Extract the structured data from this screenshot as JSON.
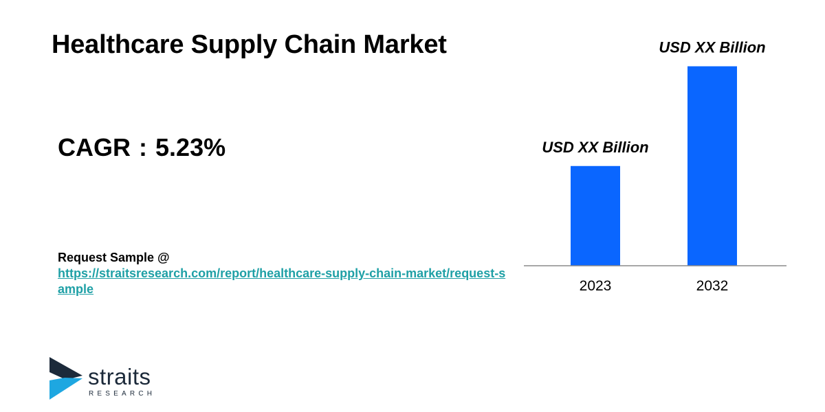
{
  "title": "Healthcare Supply Chain Market",
  "cagr": {
    "label": "CAGR",
    "separator": ":",
    "value": "5.23%"
  },
  "request": {
    "label": "Request Sample @",
    "url": "https://straitsresearch.com/report/healthcare-supply-chain-market/request-sample"
  },
  "logo": {
    "word": "straits",
    "sub": "RESEARCH",
    "colors": {
      "mark_dark": "#1c2a3a",
      "mark_light": "#1ea7e1",
      "text": "#1c2a3a"
    }
  },
  "chart_data": {
    "type": "bar",
    "categories": [
      "2023",
      "2032"
    ],
    "values": [
      2.0,
      4.0
    ],
    "value_labels": [
      "USD XX Billion",
      "USD XX Billion"
    ],
    "title": "",
    "xlabel": "",
    "ylabel": "",
    "ylim": [
      0,
      4.2
    ],
    "grid": false,
    "legend": "none",
    "bar_color": "#0a66ff"
  }
}
